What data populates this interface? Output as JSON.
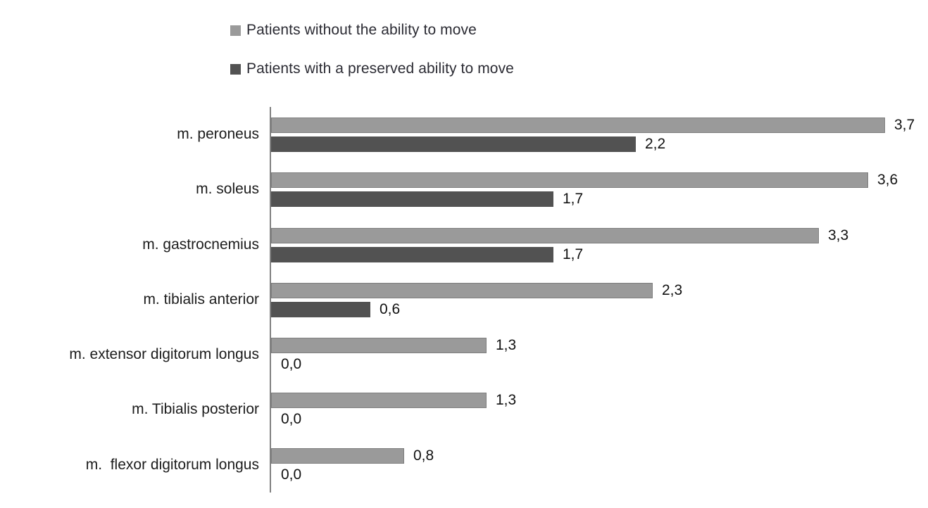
{
  "chart_data": {
    "type": "bar",
    "orientation": "horizontal",
    "title": "",
    "xlabel": "",
    "ylabel": "",
    "categories": [
      "m. peroneus",
      "m. soleus",
      "m. gastrocnemius",
      "m. tibialis anterior",
      "m. extensor digitorum longus",
      "m. Tibialis posterior",
      "m.  flexor digitorum longus"
    ],
    "series": [
      {
        "name": "Patients without the ability to move",
        "color": "#9a9a9a",
        "values": [
          3.7,
          3.6,
          3.3,
          2.3,
          1.3,
          1.3,
          0.8
        ],
        "value_labels": [
          "3,7",
          "3,6",
          "3,3",
          "2,3",
          "1,3",
          "1,3",
          "0,8"
        ]
      },
      {
        "name": "Patients with a preserved ability to move",
        "color": "#525252",
        "values": [
          2.2,
          1.7,
          1.7,
          0.6,
          0.0,
          0.0,
          0.0
        ],
        "value_labels": [
          "2,2",
          "1,7",
          "1,7",
          "0,6",
          "0,0",
          "0,0",
          "0,0"
        ]
      }
    ],
    "xlim": [
      0,
      3.7
    ],
    "grid": false,
    "legend_position": "top",
    "value_label_format": "comma-decimal",
    "axis_color": "#808080",
    "text_color": "#1c1c1c"
  }
}
